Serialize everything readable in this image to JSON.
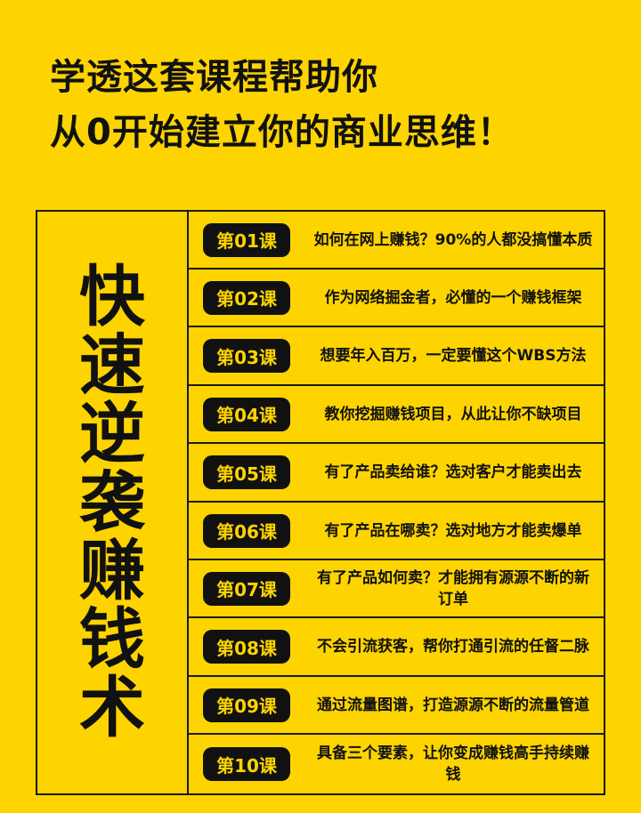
{
  "headline": {
    "line1": "学透这套课程帮助你",
    "line2": "从0开始建立你的商业思维！"
  },
  "side_title": [
    "快",
    "速",
    "逆",
    "袭",
    "赚",
    "钱",
    "术"
  ],
  "lessons": [
    {
      "badge": "第01课",
      "text": "如何在网上赚钱？90%的人都没搞懂本质"
    },
    {
      "badge": "第02课",
      "text": "作为网络掘金者，必懂的一个赚钱框架"
    },
    {
      "badge": "第03课",
      "text": "想要年入百万，一定要懂这个WBS方法"
    },
    {
      "badge": "第04课",
      "text": "教你挖掘赚钱项目，从此让你不缺项目"
    },
    {
      "badge": "第05课",
      "text": "有了产品卖给谁？选对客户才能卖出去"
    },
    {
      "badge": "第06课",
      "text": "有了产品在哪卖？选对地方才能卖爆单"
    },
    {
      "badge": "第07课",
      "text": "有了产品如何卖？才能拥有源源不断的新订单"
    },
    {
      "badge": "第08课",
      "text": "不会引流获客，帮你打通引流的任督二脉"
    },
    {
      "badge": "第09课",
      "text": "通过流量图谱，打造源源不断的流量管道"
    },
    {
      "badge": "第10课",
      "text": "具备三个要素，让你变成赚钱高手持续赚钱"
    }
  ],
  "colors": {
    "background": "#fdd400",
    "dark": "#111111"
  }
}
